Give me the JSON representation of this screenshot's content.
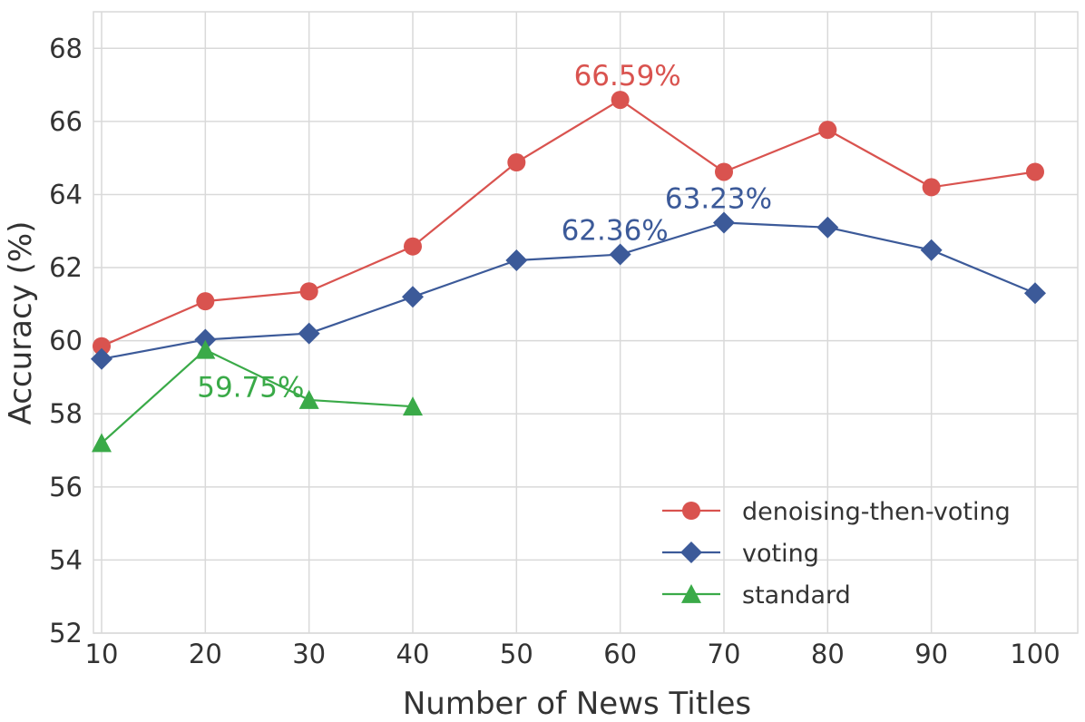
{
  "chart_data": {
    "type": "line",
    "xlabel": "Number of News Titles",
    "ylabel": "Accuracy (%)",
    "xlim": [
      10,
      100
    ],
    "ylim": [
      52,
      69
    ],
    "x_ticks": [
      10,
      20,
      30,
      40,
      50,
      60,
      70,
      80,
      90,
      100
    ],
    "y_ticks": [
      52,
      54,
      56,
      58,
      60,
      62,
      64,
      66,
      68
    ],
    "grid": true,
    "legend_position": "bottom-right",
    "series": [
      {
        "name": "denoising-then-voting",
        "color": "#d9534f",
        "marker": "circle",
        "x": [
          10,
          20,
          30,
          40,
          50,
          60,
          70,
          80,
          90,
          100
        ],
        "y": [
          59.85,
          61.08,
          61.35,
          62.58,
          64.88,
          66.59,
          64.62,
          65.77,
          64.2,
          64.62
        ]
      },
      {
        "name": "voting",
        "color": "#3c5a99",
        "marker": "diamond",
        "x": [
          10,
          20,
          30,
          40,
          50,
          60,
          70,
          80,
          90,
          100
        ],
        "y": [
          59.5,
          60.03,
          60.2,
          61.2,
          62.2,
          62.36,
          63.23,
          63.1,
          62.48,
          61.3
        ]
      },
      {
        "name": "standard",
        "color": "#3aaa48",
        "marker": "triangle",
        "x": [
          10,
          20,
          30,
          40
        ],
        "y": [
          57.2,
          59.75,
          58.38,
          58.2
        ]
      }
    ],
    "annotations": [
      {
        "text": "66.59%",
        "x": 60,
        "y": 66.59,
        "series": 0
      },
      {
        "text": "62.36%",
        "x": 60,
        "y": 62.36,
        "series": 1
      },
      {
        "text": "63.23%",
        "x": 70,
        "y": 63.23,
        "series": 1
      },
      {
        "text": "59.75%",
        "x": 20,
        "y": 59.75,
        "series": 2
      }
    ]
  }
}
